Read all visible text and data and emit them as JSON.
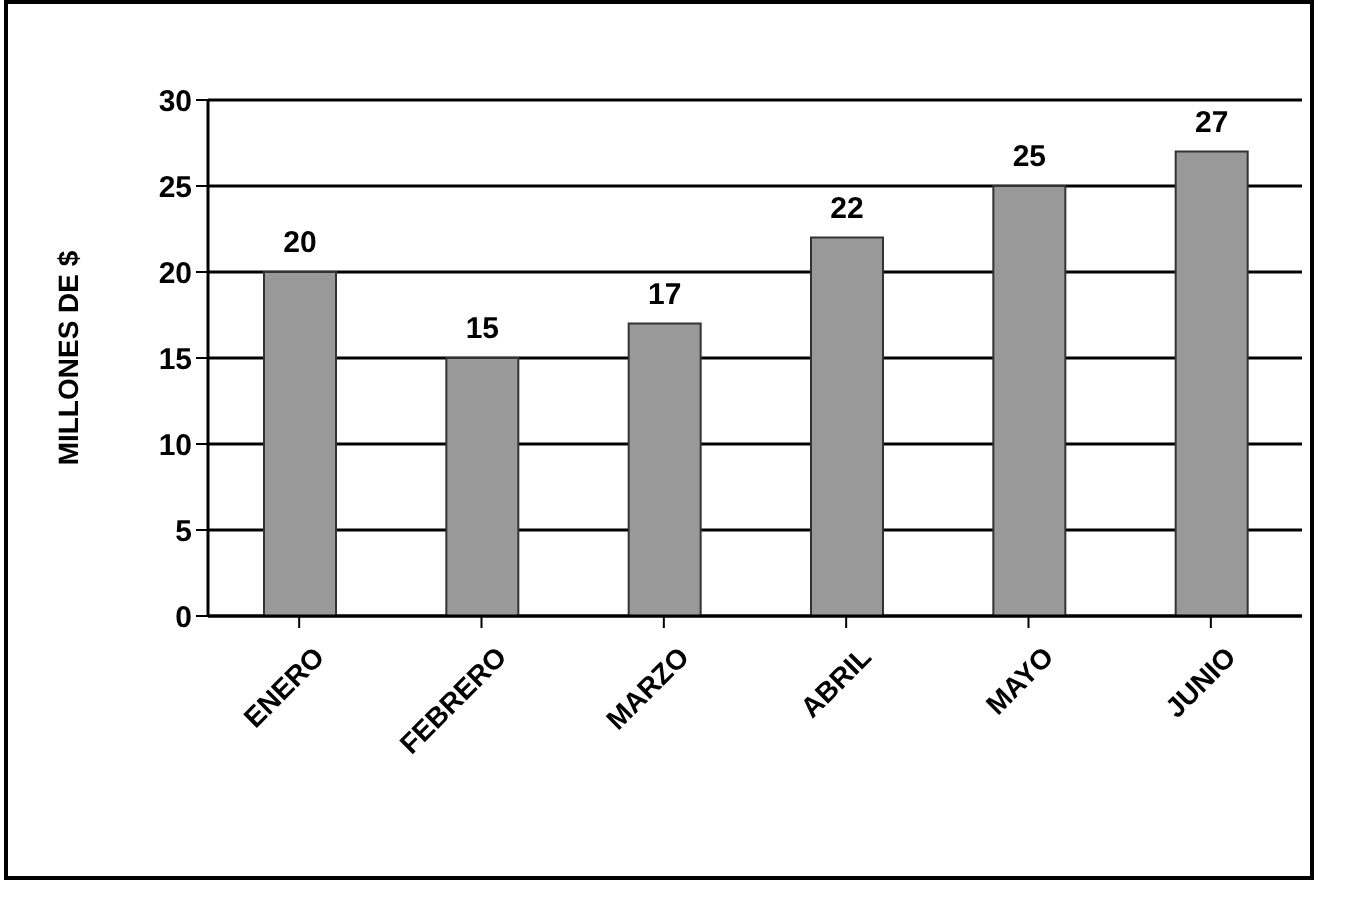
{
  "chart_data": {
    "type": "bar",
    "ylabel": "MILLONES DE $",
    "categories": [
      "ENERO",
      "FEBRERO",
      "MARZO",
      "ABRIL",
      "MAYO",
      "JUNIO"
    ],
    "values": [
      20,
      15,
      17,
      22,
      25,
      27
    ],
    "color": "#999999",
    "ylim": [
      0,
      30
    ],
    "yticks": [
      0,
      5,
      10,
      15,
      20,
      25,
      30
    ],
    "grid": "y",
    "data_labels": true
  }
}
